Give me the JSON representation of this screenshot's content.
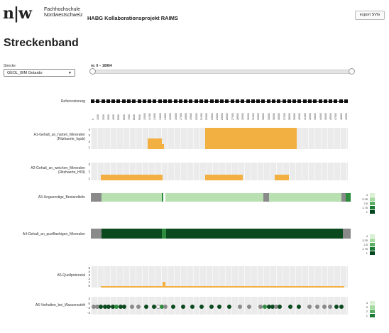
{
  "header": {
    "logo_text": "n|w",
    "institution_line1": "Fachhochschule",
    "institution_line2": "Nordwestschweiz",
    "project_title": "HABG Kollaborationsprojekt RAIMS",
    "export_button": "export SVG"
  },
  "page_title": "Streckenband",
  "route": {
    "label": "Strecke",
    "selected": "GEOL_BIM Gotardo"
  },
  "range": {
    "label": "m: 0 – 16964",
    "min": 0,
    "max": 16964
  },
  "colors": {
    "orange": "#f2b043",
    "light_green": "#b8e0b0",
    "dark_green": "#0b4a1f",
    "mid_green": "#2e8c3e",
    "grey": "#8a8a8a",
    "panel_bg": "#ebebeb"
  },
  "referencing": {
    "label": "Referenzierung",
    "ticks": [
      "0",
      "1000",
      "2000",
      "3000",
      "4000",
      "5000",
      "6000",
      "7000",
      "8000",
      "9000",
      "10000",
      "11000",
      "12000",
      "13000",
      "14000",
      "15000",
      "16000",
      "17000",
      "18000",
      "19000",
      "20000",
      "21000",
      "22000",
      "23000",
      "24000",
      "25000",
      "26000",
      "27000",
      "28000",
      "29000",
      "30000",
      "31000",
      "32000",
      "33000",
      "34000",
      "35000",
      "36000",
      "37000",
      "38000",
      "39000",
      "40000",
      "41000",
      "42000",
      "43000",
      "44000",
      "45000",
      "46000",
      "47000",
      "48000",
      "49000"
    ]
  },
  "tracks": {
    "a1": {
      "label_line1": "A1-Gehalt_an_harten_Mineralen",
      "label_line2": "(Ritzhaerte_hgsb)",
      "yticks": [
        "4",
        "3",
        "2",
        "1"
      ],
      "segments": [
        {
          "start": 0.22,
          "end": 0.275,
          "level": 2
        },
        {
          "start": 0.275,
          "end": 0.285,
          "level": 1
        },
        {
          "start": 0.445,
          "end": 0.8,
          "level": 4
        }
      ]
    },
    "a2": {
      "label_line1": "A2-Gehalt_an_weichen_Mineralen",
      "label_line2": "(Ritzhaerte_H03)",
      "yticks": [
        "3",
        "2",
        "1"
      ],
      "segments": [
        {
          "start": 0.04,
          "end": 0.28,
          "level": 1
        },
        {
          "start": 0.445,
          "end": 0.59,
          "level": 1
        },
        {
          "start": 0.715,
          "end": 0.77,
          "level": 1
        }
      ]
    },
    "a3": {
      "label": "A3-Unguenstige_Bestandteile",
      "segments": [
        {
          "start": 0.0,
          "end": 0.04,
          "color": "grey"
        },
        {
          "start": 0.04,
          "end": 0.272,
          "color": "light_green"
        },
        {
          "start": 0.272,
          "end": 0.28,
          "color": "mid_green"
        },
        {
          "start": 0.287,
          "end": 0.665,
          "color": "light_green"
        },
        {
          "start": 0.665,
          "end": 0.685,
          "color": "grey"
        },
        {
          "start": 0.685,
          "end": 0.965,
          "color": "light_green"
        },
        {
          "start": 0.965,
          "end": 0.98,
          "color": "grey"
        },
        {
          "start": 0.98,
          "end": 1.0,
          "color": "mid_green"
        }
      ],
      "legend": [
        "4",
        "3.25",
        "2.5",
        "1.75",
        "1"
      ]
    },
    "a4": {
      "label": "A4-Gehalt_an_quellfaehigen_Mineralen",
      "segments": [
        {
          "start": 0.0,
          "end": 0.04,
          "color": "grey"
        },
        {
          "start": 0.04,
          "end": 0.272,
          "color": "dark_green"
        },
        {
          "start": 0.272,
          "end": 0.29,
          "color": "mid_green"
        },
        {
          "start": 0.29,
          "end": 0.97,
          "color": "dark_green"
        },
        {
          "start": 0.97,
          "end": 1.0,
          "color": "grey"
        }
      ],
      "legend": [
        "4",
        "3.25",
        "2.5",
        "1.75",
        "1"
      ]
    },
    "a5": {
      "label": "A5-Quellpotenzial",
      "yticks": [
        "5",
        "4",
        "3",
        "2",
        "1",
        "0"
      ],
      "segments": [
        {
          "start": 0.04,
          "end": 0.28,
          "level": 0.4
        },
        {
          "start": 0.28,
          "end": 0.29,
          "level": 1.4
        },
        {
          "start": 0.29,
          "end": 0.985,
          "level": 0.4
        }
      ]
    },
    "a6": {
      "label": "A6-Verhalten_bei_Wasserzutritt",
      "yticks": [
        "2",
        "0",
        "-2",
        "-4"
      ],
      "dots": [
        {
          "x": 0.01,
          "c": "grey"
        },
        {
          "x": 0.025,
          "c": "grey"
        },
        {
          "x": 0.04,
          "c": "dark_green"
        },
        {
          "x": 0.055,
          "c": "dark_green"
        },
        {
          "x": 0.07,
          "c": "dark_green"
        },
        {
          "x": 0.085,
          "c": "dark_green"
        },
        {
          "x": 0.1,
          "c": "mid_green"
        },
        {
          "x": 0.115,
          "c": "dark_green"
        },
        {
          "x": 0.13,
          "c": "dark_green"
        },
        {
          "x": 0.16,
          "c": "grey"
        },
        {
          "x": 0.185,
          "c": "grey"
        },
        {
          "x": 0.215,
          "c": "dark_green"
        },
        {
          "x": 0.245,
          "c": "dark_green"
        },
        {
          "x": 0.262,
          "c": "white"
        },
        {
          "x": 0.275,
          "c": "mid_green"
        },
        {
          "x": 0.29,
          "c": "grey"
        },
        {
          "x": 0.32,
          "c": "dark_green"
        },
        {
          "x": 0.36,
          "c": "dark_green"
        },
        {
          "x": 0.395,
          "c": "dark_green"
        },
        {
          "x": 0.43,
          "c": "dark_green"
        },
        {
          "x": 0.47,
          "c": "dark_green"
        },
        {
          "x": 0.5,
          "c": "dark_green"
        },
        {
          "x": 0.54,
          "c": "dark_green"
        },
        {
          "x": 0.58,
          "c": "grey"
        },
        {
          "x": 0.615,
          "c": "grey"
        },
        {
          "x": 0.66,
          "c": "grey"
        },
        {
          "x": 0.678,
          "c": "mid_green"
        },
        {
          "x": 0.692,
          "c": "dark_green"
        },
        {
          "x": 0.706,
          "c": "dark_green"
        },
        {
          "x": 0.72,
          "c": "grey"
        },
        {
          "x": 0.735,
          "c": "dark_green"
        },
        {
          "x": 0.775,
          "c": "dark_green"
        },
        {
          "x": 0.81,
          "c": "dark_green"
        },
        {
          "x": 0.85,
          "c": "grey"
        },
        {
          "x": 0.88,
          "c": "grey"
        },
        {
          "x": 0.91,
          "c": "grey"
        },
        {
          "x": 0.93,
          "c": "grey"
        },
        {
          "x": 0.955,
          "c": "dark_green"
        },
        {
          "x": 0.975,
          "c": "dark_green"
        }
      ],
      "legend": [
        "4",
        "3",
        "2",
        "1"
      ]
    }
  }
}
